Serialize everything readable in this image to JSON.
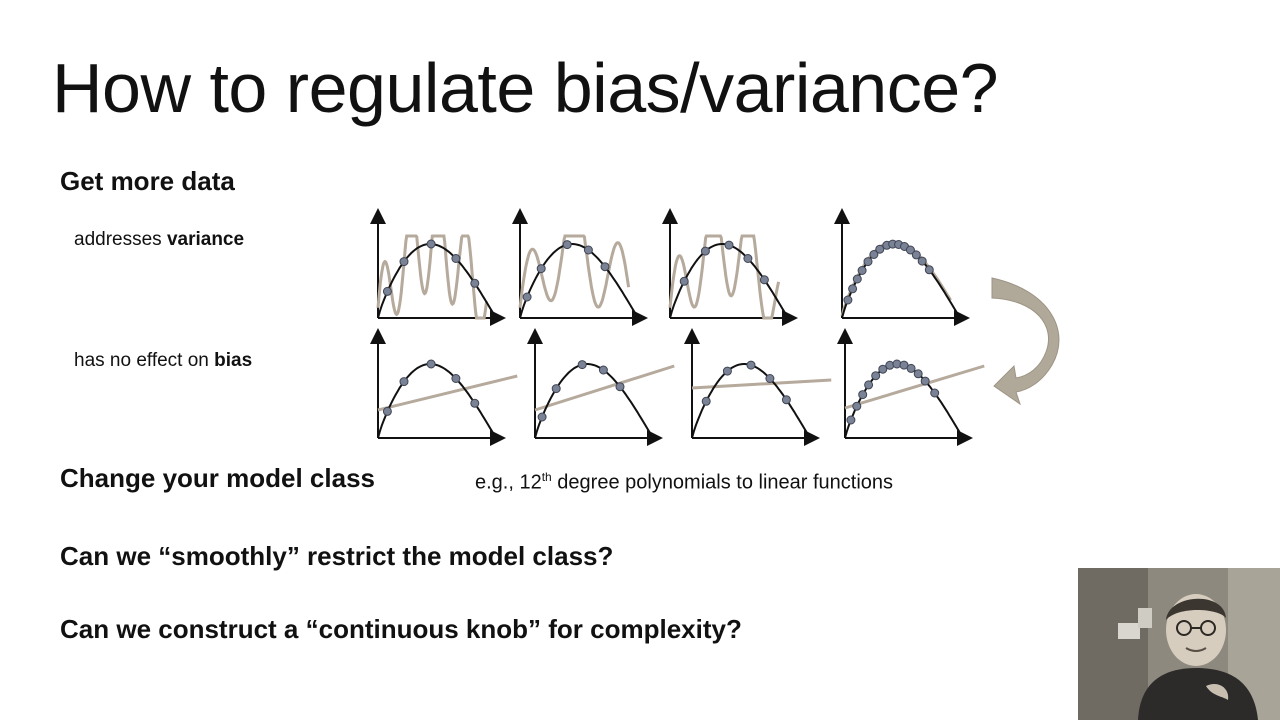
{
  "slide": {
    "title": "How to regulate bias/variance?",
    "get_more_data": "Get more data",
    "addresses_prefix": "addresses ",
    "addresses_bold": "variance",
    "no_effect_prefix": "has no effect on ",
    "no_effect_bold": "bias",
    "change_model_class": "Change your model class",
    "example_prefix": "e.g., 12",
    "example_sup": "th",
    "example_suffix": " degree polynomials to linear functions",
    "smoothly_question": "Can we “smoothly” restrict the model class?",
    "knob_question": "Can we construct a “continuous knob” for complexity?"
  },
  "colors": {
    "true_curve": "#111111",
    "fit_curve": "#b5aa9c",
    "points": "#7a8296",
    "arrow": "#b0a898"
  }
}
